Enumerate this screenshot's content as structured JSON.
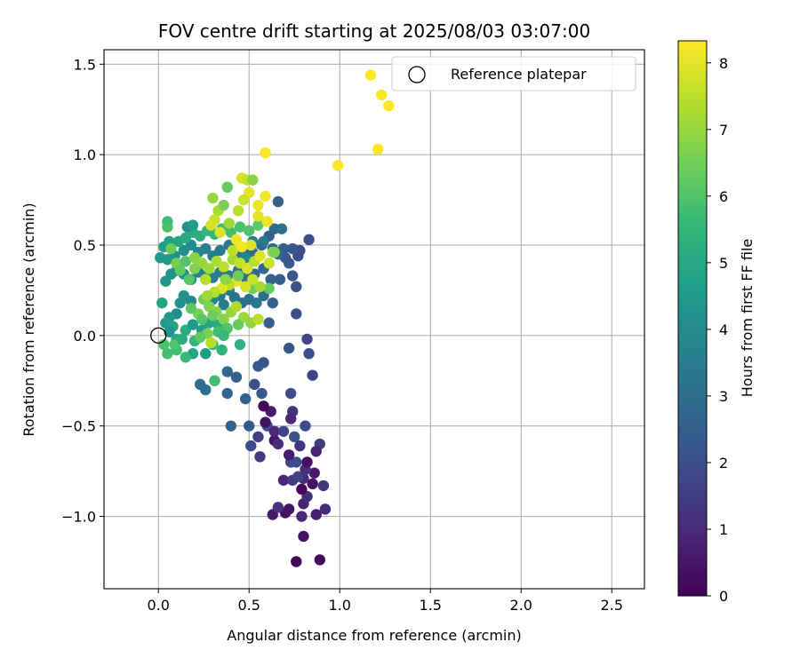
{
  "chart_data": {
    "type": "scatter",
    "title": "FOV centre drift starting at 2025/08/03 03:07:00",
    "xlabel": "Angular distance from reference (arcmin)",
    "ylabel": "Rotation from reference (arcmin)",
    "xlim": [
      -0.3,
      2.68
    ],
    "ylim": [
      -1.4,
      1.58
    ],
    "xticks": [
      0.0,
      0.5,
      1.0,
      1.5,
      2.0,
      2.5
    ],
    "xtick_labels": [
      "0.0",
      "0.5",
      "1.0",
      "1.5",
      "2.0",
      "2.5"
    ],
    "yticks": [
      -1.0,
      -0.5,
      0.0,
      0.5,
      1.0,
      1.5
    ],
    "ytick_labels": [
      "−1.0",
      "−0.5",
      "0.0",
      "0.5",
      "1.0",
      "1.5"
    ],
    "grid": true,
    "legend": {
      "position": "top-right",
      "entries": [
        "Reference platepar"
      ]
    },
    "reference_point": {
      "x": 0.0,
      "y": 0.0,
      "marker": "open-circle"
    },
    "colorbar": {
      "label": "Hours from first FF file",
      "min": 0,
      "max": 8.33,
      "ticks": [
        0,
        1,
        2,
        3,
        4,
        5,
        6,
        7,
        8
      ],
      "tick_labels": [
        "0",
        "1",
        "2",
        "3",
        "4",
        "5",
        "6",
        "7",
        "8"
      ],
      "colormap": "viridis"
    },
    "points": [
      [
        0.76,
        -1.25,
        0.1
      ],
      [
        0.89,
        -1.24,
        0.2
      ],
      [
        0.8,
        -1.11,
        0.4
      ],
      [
        0.63,
        -0.99,
        0.6
      ],
      [
        0.7,
        -0.98,
        0.3
      ],
      [
        0.87,
        -0.99,
        0.7
      ],
      [
        0.79,
        -1.0,
        0.9
      ],
      [
        0.92,
        -0.96,
        1.0
      ],
      [
        0.66,
        -0.95,
        1.2
      ],
      [
        0.72,
        -0.96,
        0.5
      ],
      [
        0.8,
        -0.93,
        0.8
      ],
      [
        0.82,
        -0.89,
        1.1
      ],
      [
        0.79,
        -0.85,
        0.2
      ],
      [
        0.91,
        -0.83,
        1.3
      ],
      [
        0.85,
        -0.82,
        0.4
      ],
      [
        0.69,
        -0.8,
        0.9
      ],
      [
        0.74,
        -0.8,
        1.5
      ],
      [
        0.8,
        -0.79,
        1.0
      ],
      [
        0.77,
        -0.78,
        1.7
      ],
      [
        0.86,
        -0.76,
        0.6
      ],
      [
        0.81,
        -0.74,
        1.2
      ],
      [
        0.73,
        -0.7,
        1.8
      ],
      [
        0.76,
        -0.7,
        2.0
      ],
      [
        0.82,
        -0.7,
        0.3
      ],
      [
        0.72,
        -0.66,
        0.7
      ],
      [
        0.56,
        -0.67,
        1.4
      ],
      [
        0.51,
        -0.61,
        1.9
      ],
      [
        0.55,
        -0.56,
        1.6
      ],
      [
        0.64,
        -0.58,
        0.5
      ],
      [
        0.66,
        -0.6,
        1.1
      ],
      [
        0.75,
        -0.56,
        2.1
      ],
      [
        0.78,
        -0.61,
        1.3
      ],
      [
        0.89,
        -0.6,
        1.5
      ],
      [
        0.87,
        -0.64,
        0.8
      ],
      [
        0.6,
        -0.5,
        2.2
      ],
      [
        0.64,
        -0.53,
        1.0
      ],
      [
        0.69,
        -0.53,
        1.7
      ],
      [
        0.81,
        -0.5,
        2.0
      ],
      [
        0.59,
        -0.48,
        0.4
      ],
      [
        0.5,
        -0.5,
        2.4
      ],
      [
        0.4,
        -0.5,
        2.6
      ],
      [
        0.62,
        -0.42,
        0.6
      ],
      [
        0.58,
        -0.39,
        0.2
      ],
      [
        0.74,
        -0.42,
        1.3
      ],
      [
        0.73,
        -0.46,
        1.0
      ],
      [
        0.73,
        -0.32,
        1.9
      ],
      [
        0.57,
        -0.32,
        2.3
      ],
      [
        0.48,
        -0.35,
        2.5
      ],
      [
        0.38,
        -0.32,
        2.7
      ],
      [
        0.53,
        -0.27,
        2.1
      ],
      [
        0.43,
        -0.23,
        2.6
      ],
      [
        0.23,
        -0.27,
        2.9
      ],
      [
        0.26,
        -0.3,
        3.1
      ],
      [
        0.38,
        -0.2,
        2.8
      ],
      [
        0.55,
        -0.17,
        2.4
      ],
      [
        0.58,
        -0.15,
        2.2
      ],
      [
        0.85,
        -0.22,
        1.7
      ],
      [
        0.83,
        -0.1,
        2.0
      ],
      [
        0.82,
        -0.02,
        1.8
      ],
      [
        0.72,
        -0.07,
        2.3
      ],
      [
        0.61,
        0.07,
        2.5
      ],
      [
        0.63,
        0.18,
        2.6
      ],
      [
        0.76,
        0.12,
        2.0
      ],
      [
        0.58,
        0.22,
        2.9
      ],
      [
        0.5,
        0.2,
        3.1
      ],
      [
        0.54,
        0.18,
        3.3
      ],
      [
        0.39,
        0.25,
        3.4
      ],
      [
        0.34,
        0.22,
        3.5
      ],
      [
        0.42,
        0.21,
        3.2
      ],
      [
        0.46,
        0.18,
        3.0
      ],
      [
        0.36,
        0.17,
        3.6
      ],
      [
        0.3,
        0.2,
        3.8
      ],
      [
        0.18,
        0.19,
        3.9
      ],
      [
        0.14,
        0.22,
        4.1
      ],
      [
        0.12,
        0.18,
        4.2
      ],
      [
        0.1,
        0.12,
        4.0
      ],
      [
        0.06,
        0.1,
        4.4
      ],
      [
        0.04,
        0.07,
        4.6
      ],
      [
        0.08,
        0.05,
        4.8
      ],
      [
        0.06,
        0.02,
        4.3
      ],
      [
        0.1,
        -0.02,
        5.0
      ],
      [
        0.15,
        0.03,
        5.2
      ],
      [
        0.19,
        0.06,
        4.5
      ],
      [
        0.24,
        0.03,
        4.7
      ],
      [
        0.28,
        0.07,
        4.9
      ],
      [
        0.33,
        0.06,
        5.1
      ],
      [
        0.37,
        0.03,
        5.3
      ],
      [
        0.3,
        -0.05,
        5.5
      ],
      [
        0.35,
        -0.08,
        5.4
      ],
      [
        0.26,
        -0.1,
        4.6
      ],
      [
        0.19,
        -0.1,
        4.9
      ],
      [
        0.15,
        -0.12,
        5.6
      ],
      [
        0.1,
        -0.08,
        5.7
      ],
      [
        0.05,
        -0.1,
        5.8
      ],
      [
        0.03,
        -0.05,
        5.9
      ],
      [
        0.09,
        -0.05,
        6.0
      ],
      [
        0.13,
        -0.02,
        5.1
      ],
      [
        0.2,
        -0.03,
        5.4
      ],
      [
        0.02,
        0.18,
        4.8
      ],
      [
        0.04,
        0.3,
        4.4
      ],
      [
        0.07,
        0.34,
        4.3
      ],
      [
        0.1,
        0.36,
        4.1
      ],
      [
        0.14,
        0.34,
        4.0
      ],
      [
        0.18,
        0.31,
        3.9
      ],
      [
        0.22,
        0.35,
        3.7
      ],
      [
        0.26,
        0.33,
        3.6
      ],
      [
        0.3,
        0.32,
        3.5
      ],
      [
        0.34,
        0.35,
        3.4
      ],
      [
        0.39,
        0.33,
        3.3
      ],
      [
        0.44,
        0.36,
        3.1
      ],
      [
        0.48,
        0.32,
        3.0
      ],
      [
        0.53,
        0.34,
        2.8
      ],
      [
        0.58,
        0.37,
        2.7
      ],
      [
        0.62,
        0.31,
        2.6
      ],
      [
        0.67,
        0.31,
        2.5
      ],
      [
        0.74,
        0.33,
        2.2
      ],
      [
        0.76,
        0.27,
        2.1
      ],
      [
        0.72,
        0.4,
        2.4
      ],
      [
        0.77,
        0.44,
        2.0
      ],
      [
        0.7,
        0.43,
        2.3
      ],
      [
        0.66,
        0.45,
        2.6
      ],
      [
        0.78,
        0.47,
        1.9
      ],
      [
        0.83,
        0.53,
        2.0
      ],
      [
        0.74,
        0.48,
        2.2
      ],
      [
        0.69,
        0.48,
        2.5
      ],
      [
        0.63,
        0.48,
        2.7
      ],
      [
        0.57,
        0.5,
        2.8
      ],
      [
        0.52,
        0.46,
        2.9
      ],
      [
        0.47,
        0.48,
        3.0
      ],
      [
        0.43,
        0.45,
        3.2
      ],
      [
        0.39,
        0.5,
        3.3
      ],
      [
        0.34,
        0.47,
        3.4
      ],
      [
        0.3,
        0.44,
        3.6
      ],
      [
        0.26,
        0.48,
        3.7
      ],
      [
        0.22,
        0.46,
        3.8
      ],
      [
        0.18,
        0.5,
        4.0
      ],
      [
        0.14,
        0.47,
        4.1
      ],
      [
        0.09,
        0.44,
        4.2
      ],
      [
        0.05,
        0.42,
        4.4
      ],
      [
        0.01,
        0.43,
        4.5
      ],
      [
        0.03,
        0.49,
        4.6
      ],
      [
        0.06,
        0.52,
        4.8
      ],
      [
        0.11,
        0.52,
        4.9
      ],
      [
        0.15,
        0.54,
        5.0
      ],
      [
        0.19,
        0.57,
        5.1
      ],
      [
        0.23,
        0.55,
        5.2
      ],
      [
        0.27,
        0.58,
        5.4
      ],
      [
        0.31,
        0.56,
        5.5
      ],
      [
        0.35,
        0.59,
        5.6
      ],
      [
        0.4,
        0.57,
        5.8
      ],
      [
        0.45,
        0.6,
        5.9
      ],
      [
        0.5,
        0.58,
        6.0
      ],
      [
        0.55,
        0.61,
        6.2
      ],
      [
        0.61,
        0.55,
        2.5
      ],
      [
        0.64,
        0.59,
        2.9
      ],
      [
        0.68,
        0.59,
        3.0
      ],
      [
        0.66,
        0.74,
        2.6
      ],
      [
        0.58,
        0.52,
        3.4
      ],
      [
        0.52,
        0.52,
        3.6
      ],
      [
        0.48,
        0.43,
        3.8
      ],
      [
        0.16,
        0.6,
        4.2
      ],
      [
        0.19,
        0.61,
        4.6
      ],
      [
        0.05,
        0.63,
        5.7
      ],
      [
        0.05,
        0.6,
        5.9
      ],
      [
        0.07,
        0.48,
        6.4
      ],
      [
        0.1,
        0.4,
        6.6
      ],
      [
        0.12,
        0.36,
        6.3
      ],
      [
        0.15,
        0.41,
        6.0
      ],
      [
        0.2,
        0.43,
        6.8
      ],
      [
        0.24,
        0.4,
        7.0
      ],
      [
        0.28,
        0.37,
        7.1
      ],
      [
        0.32,
        0.41,
        7.3
      ],
      [
        0.36,
        0.38,
        7.5
      ],
      [
        0.41,
        0.42,
        7.2
      ],
      [
        0.45,
        0.4,
        7.6
      ],
      [
        0.49,
        0.37,
        7.8
      ],
      [
        0.53,
        0.41,
        7.4
      ],
      [
        0.56,
        0.44,
        7.9
      ],
      [
        0.61,
        0.4,
        7.7
      ],
      [
        0.63,
        0.46,
        7.2
      ],
      [
        0.25,
        0.2,
        6.5
      ],
      [
        0.28,
        0.16,
        6.7
      ],
      [
        0.32,
        0.13,
        6.9
      ],
      [
        0.22,
        0.12,
        6.6
      ],
      [
        0.18,
        0.15,
        6.2
      ],
      [
        0.24,
        0.09,
        6.1
      ],
      [
        0.3,
        0.11,
        6.4
      ],
      [
        0.36,
        0.09,
        6.8
      ],
      [
        0.4,
        0.13,
        7.0
      ],
      [
        0.43,
        0.16,
        7.3
      ],
      [
        0.47,
        0.1,
        7.1
      ],
      [
        0.51,
        0.07,
        6.9
      ],
      [
        0.55,
        0.09,
        7.5
      ],
      [
        0.44,
        0.06,
        6.3
      ],
      [
        0.38,
        0.04,
        6.0
      ],
      [
        0.33,
        0.02,
        5.8
      ],
      [
        0.27,
        0.01,
        6.6
      ],
      [
        0.23,
        -0.01,
        6.2
      ],
      [
        0.29,
        -0.04,
        7.4
      ],
      [
        0.36,
        0.0,
        5.6
      ],
      [
        0.45,
        -0.05,
        5.3
      ],
      [
        0.31,
        -0.25,
        5.8
      ],
      [
        0.52,
        0.26,
        6.4
      ],
      [
        0.61,
        0.26,
        6.3
      ],
      [
        0.64,
        0.46,
        6.6
      ],
      [
        0.56,
        0.27,
        7.2
      ],
      [
        0.52,
        0.31,
        7.6
      ],
      [
        0.48,
        0.27,
        7.8
      ],
      [
        0.43,
        0.3,
        8.0
      ],
      [
        0.39,
        0.28,
        7.5
      ],
      [
        0.35,
        0.26,
        7.9
      ],
      [
        0.31,
        0.24,
        7.4
      ],
      [
        0.27,
        0.22,
        7.1
      ],
      [
        0.38,
        0.82,
        6.3
      ],
      [
        0.3,
        0.76,
        7.0
      ],
      [
        0.33,
        0.69,
        7.3
      ],
      [
        0.36,
        0.72,
        6.6
      ],
      [
        0.44,
        0.69,
        7.4
      ],
      [
        0.46,
        0.87,
        7.8
      ],
      [
        0.49,
        0.86,
        7.6
      ],
      [
        0.52,
        0.86,
        6.8
      ],
      [
        0.5,
        0.79,
        8.0
      ],
      [
        0.47,
        0.75,
        7.7
      ],
      [
        0.55,
        0.72,
        8.1
      ],
      [
        0.59,
        0.77,
        8.2
      ],
      [
        0.55,
        0.66,
        8.0
      ],
      [
        0.6,
        0.63,
        8.1
      ],
      [
        0.31,
        0.64,
        7.6
      ],
      [
        0.29,
        0.61,
        7.8
      ],
      [
        0.34,
        0.57,
        7.9
      ],
      [
        0.39,
        0.62,
        7.1
      ],
      [
        0.43,
        0.53,
        8.1
      ],
      [
        0.41,
        0.47,
        7.5
      ],
      [
        0.46,
        0.49,
        8.2
      ],
      [
        0.51,
        0.5,
        7.9
      ],
      [
        0.2,
        0.37,
        6.7
      ],
      [
        0.17,
        0.31,
        6.1
      ],
      [
        0.26,
        0.31,
        7.4
      ],
      [
        0.37,
        0.31,
        6.9
      ],
      [
        0.44,
        0.33,
        6.5
      ],
      [
        0.59,
        1.01,
        8.3
      ],
      [
        0.99,
        0.94,
        8.3
      ],
      [
        1.21,
        1.03,
        8.3
      ],
      [
        1.17,
        1.44,
        8.3
      ],
      [
        1.23,
        1.33,
        8.3
      ],
      [
        1.27,
        1.27,
        8.3
      ],
      [
        0.59,
        1.01,
        8.3
      ]
    ]
  }
}
